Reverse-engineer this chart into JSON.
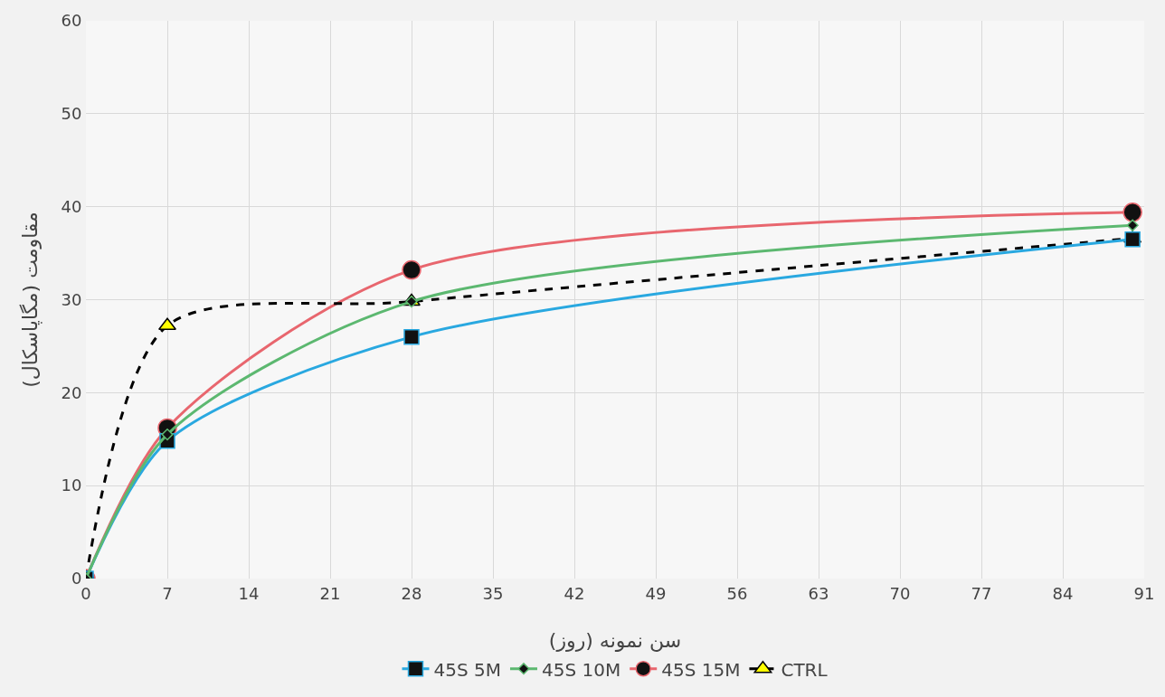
{
  "chart_data": {
    "type": "line",
    "xlabel": "سن نمونه (روز)",
    "ylabel": "مقاومت (مگاپاسکال)",
    "x": [
      0,
      7,
      28,
      90
    ],
    "series": [
      {
        "name": "45S 5M",
        "color": "#29a8e0",
        "values": [
          0,
          14.8,
          26,
          36.5
        ],
        "marker": "square",
        "line_style": "solid"
      },
      {
        "name": "45S 10M",
        "color": "#5cb870",
        "values": [
          0,
          15.5,
          29.8,
          38
        ],
        "marker": "diamond",
        "line_style": "solid"
      },
      {
        "name": "45S 15M",
        "color": "#e8666e",
        "values": [
          0,
          16.2,
          33.2,
          39.4
        ],
        "marker": "circle",
        "line_style": "solid"
      },
      {
        "name": "CTRL",
        "color": "#000000",
        "values": [
          0,
          27.2,
          29.8,
          36.6
        ],
        "marker": "triangle",
        "line_style": "dashed"
      }
    ],
    "xlim": [
      0,
      91
    ],
    "xticks": [
      0,
      7,
      14,
      21,
      28,
      35,
      42,
      49,
      56,
      63,
      70,
      77,
      84,
      91
    ],
    "ylim": [
      0,
      60
    ],
    "yticks": [
      0,
      10,
      20,
      30,
      40,
      50,
      60
    ],
    "grid": true,
    "legend": "bottom"
  }
}
